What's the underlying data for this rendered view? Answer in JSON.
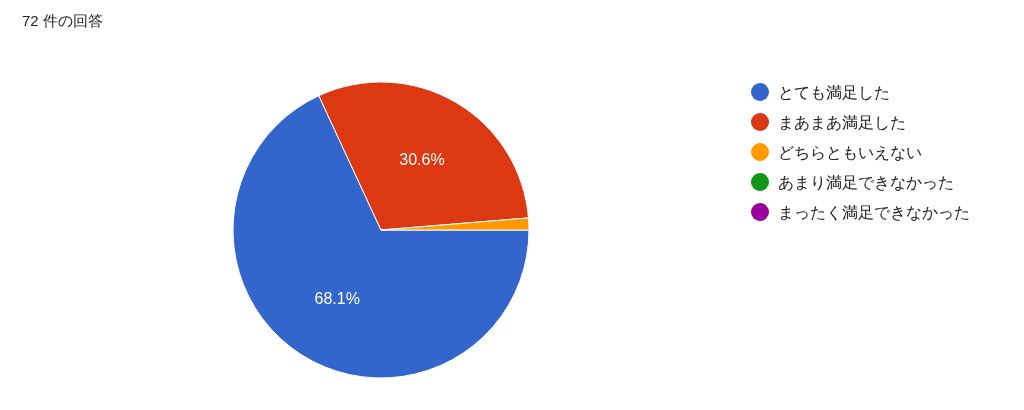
{
  "chart_data": {
    "type": "pie",
    "title": "72 件の回答",
    "categories": [
      "とても満足した",
      "まあまあ満足した",
      "どちらともいえない",
      "あまり満足できなかった",
      "まったく満足できなかった"
    ],
    "values": [
      68.1,
      30.6,
      1.3,
      0,
      0
    ],
    "colors": [
      "#3366cc",
      "#dc3912",
      "#ff9900",
      "#109618",
      "#990099"
    ],
    "value_labels": [
      "68.1%",
      "30.6%",
      null,
      null,
      null
    ],
    "legend": "right"
  }
}
